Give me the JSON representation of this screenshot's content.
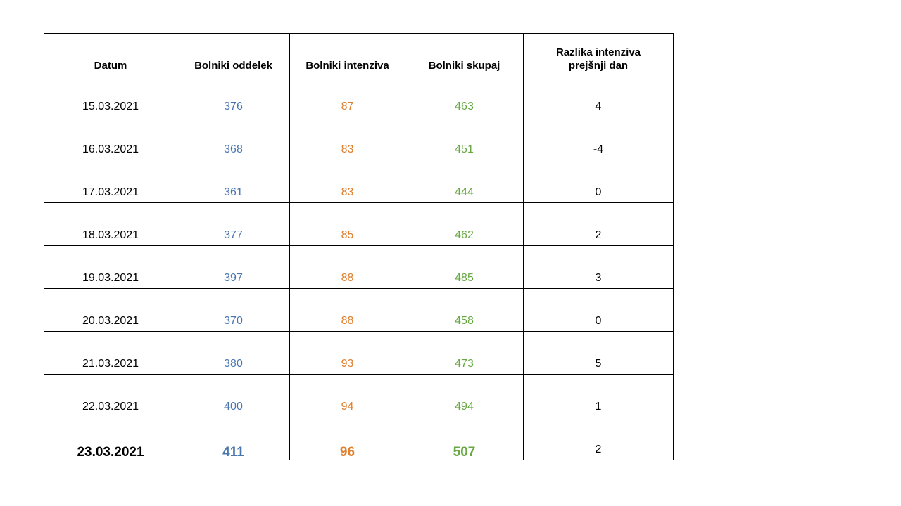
{
  "table": {
    "headers": {
      "date": "Datum",
      "dept": "Bolniki oddelek",
      "icu": "Bolniki intenziva",
      "total": "Bolniki skupaj",
      "diff_line1": "Razlika intenziva",
      "diff_line2": "prejšnji dan"
    },
    "rows": [
      {
        "date": "15.03.2021",
        "dept": "376",
        "icu": "87",
        "total": "463",
        "diff": "4"
      },
      {
        "date": "16.03.2021",
        "dept": "368",
        "icu": "83",
        "total": "451",
        "diff": "-4"
      },
      {
        "date": "17.03.2021",
        "dept": "361",
        "icu": "83",
        "total": "444",
        "diff": "0"
      },
      {
        "date": "18.03.2021",
        "dept": "377",
        "icu": "85",
        "total": "462",
        "diff": "2"
      },
      {
        "date": "19.03.2021",
        "dept": "397",
        "icu": "88",
        "total": "485",
        "diff": "3"
      },
      {
        "date": "20.03.2021",
        "dept": "370",
        "icu": "88",
        "total": "458",
        "diff": "0"
      },
      {
        "date": "21.03.2021",
        "dept": "380",
        "icu": "93",
        "total": "473",
        "diff": "5"
      },
      {
        "date": "22.03.2021",
        "dept": "400",
        "icu": "94",
        "total": "494",
        "diff": "1"
      },
      {
        "date": "23.03.2021",
        "dept": "411",
        "icu": "96",
        "total": "507",
        "diff": "2"
      }
    ]
  },
  "colors": {
    "dept": "#4a76b0",
    "icu": "#e07f2e",
    "total": "#67a842",
    "text": "#000000",
    "border": "#000000"
  }
}
